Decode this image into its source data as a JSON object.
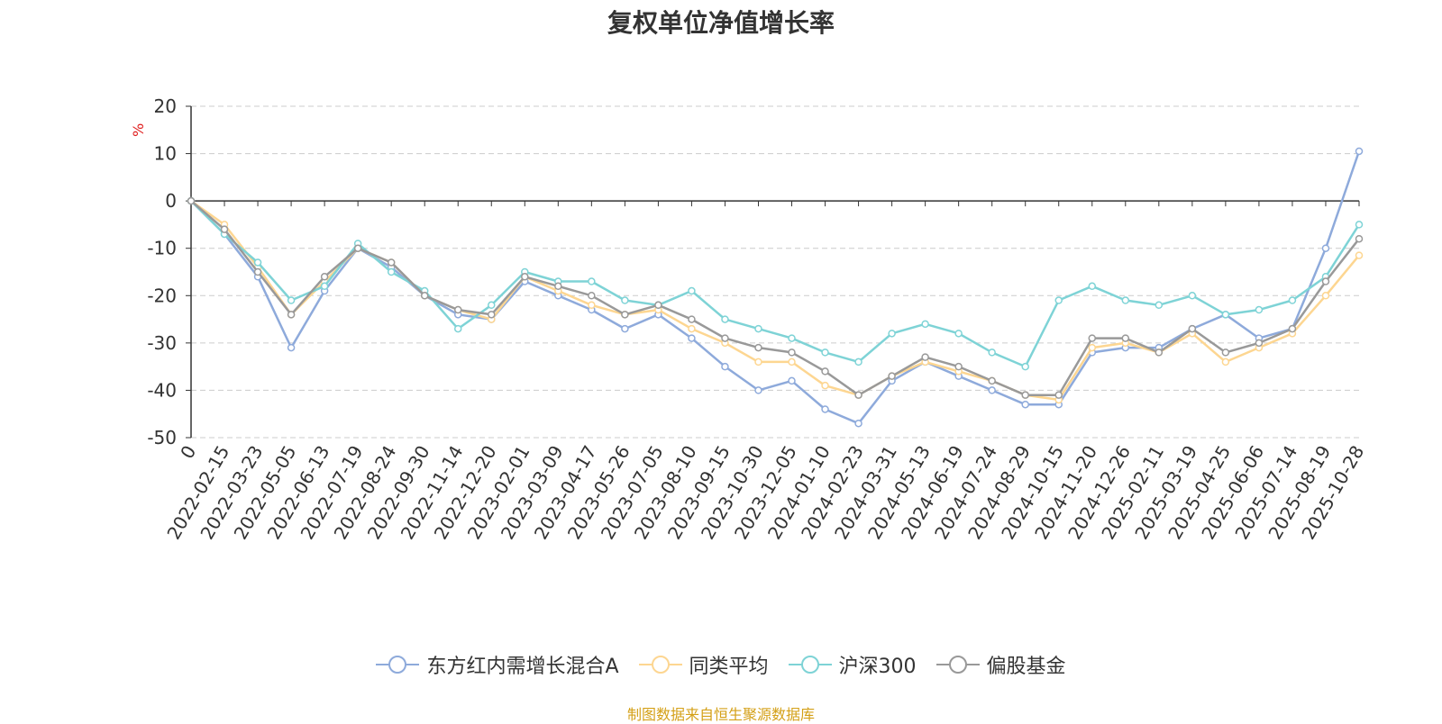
{
  "chart_data": {
    "type": "line",
    "title": "复权单位净值增长率",
    "ylabel": "%",
    "ylim": [
      -50,
      20
    ],
    "yticks": [
      20,
      10,
      0,
      -10,
      -20,
      -30,
      -40,
      -50
    ],
    "grid": true,
    "legend_position": "bottom",
    "x": [
      "0",
      "2022-02-15",
      "2022-03-23",
      "2022-05-05",
      "2022-06-13",
      "2022-07-19",
      "2022-08-24",
      "2022-09-30",
      "2022-11-14",
      "2022-12-20",
      "2023-02-01",
      "2023-03-09",
      "2023-04-17",
      "2023-05-26",
      "2023-07-05",
      "2023-08-10",
      "2023-09-15",
      "2023-10-30",
      "2023-12-05",
      "2024-01-10",
      "2024-02-23",
      "2024-03-31",
      "2024-05-13",
      "2024-06-19",
      "2024-07-24",
      "2024-08-29",
      "2024-10-15",
      "2024-11-20",
      "2024-12-26",
      "2025-02-11",
      "2025-03-19",
      "2025-04-25",
      "2025-06-06",
      "2025-07-14",
      "2025-08-19",
      "2025-10-28"
    ],
    "series": [
      {
        "name": "东方红内需增长混合A",
        "color": "#8eaadb",
        "values": [
          0,
          -7,
          -16,
          -31,
          -19,
          -10,
          -14,
          -20,
          -24,
          -25,
          -17,
          -20,
          -23,
          -27,
          -24,
          -29,
          -35,
          -40,
          -38,
          -44,
          -47,
          -38,
          -34,
          -37,
          -40,
          -43,
          -43,
          -32,
          -31,
          -31,
          -27,
          -24,
          -29,
          -27,
          -10,
          10.5
        ]
      },
      {
        "name": "同类平均",
        "color": "#fdd691",
        "values": [
          0,
          -5,
          -14,
          -24,
          -17,
          -10,
          -13,
          -20,
          -23,
          -25,
          -16,
          -19,
          -22,
          -24,
          -23,
          -27,
          -30,
          -34,
          -34,
          -39,
          -41,
          -37,
          -34,
          -36,
          -38,
          -41,
          -42,
          -31,
          -30,
          -32,
          -28,
          -34,
          -31,
          -28,
          -20,
          -11.5
        ]
      },
      {
        "name": "沪深300",
        "color": "#7ed3d6",
        "values": [
          0,
          -7,
          -13,
          -21,
          -18,
          -9,
          -15,
          -19,
          -27,
          -22,
          -15,
          -17,
          -17,
          -21,
          -22,
          -19,
          -25,
          -27,
          -29,
          -32,
          -34,
          -28,
          -26,
          -28,
          -32,
          -35,
          -21,
          -18,
          -21,
          -22,
          -20,
          -24,
          -23,
          -21,
          -16,
          -5
        ]
      },
      {
        "name": "偏股基金",
        "color": "#999999",
        "values": [
          0,
          -6,
          -15,
          -24,
          -16,
          -10,
          -13,
          -20,
          -23,
          -24,
          -16,
          -18,
          -20,
          -24,
          -22,
          -25,
          -29,
          -31,
          -32,
          -36,
          -41,
          -37,
          -33,
          -35,
          -38,
          -41,
          -41,
          -29,
          -29,
          -32,
          -27,
          -32,
          -30,
          -27,
          -17,
          -8
        ]
      }
    ]
  },
  "source": "制图数据来自恒生聚源数据库"
}
